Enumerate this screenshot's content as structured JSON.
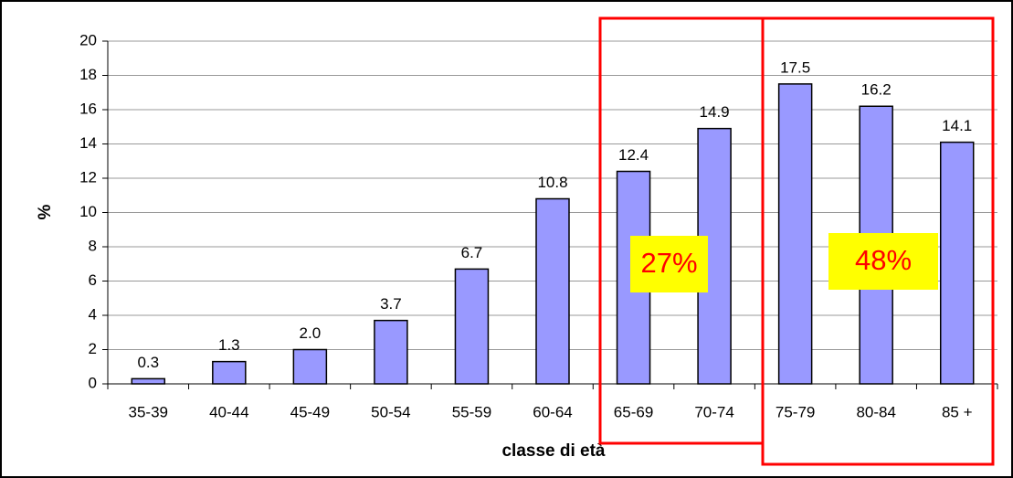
{
  "chart_data": {
    "type": "bar",
    "x_label": "classe di età",
    "y_label": "%",
    "categories": [
      "35-39",
      "40-44",
      "45-49",
      "50-54",
      "55-59",
      "60-64",
      "65-69",
      "70-74",
      "75-79",
      "80-84",
      "85 +"
    ],
    "values": [
      0.3,
      1.3,
      2.0,
      3.7,
      6.7,
      10.8,
      12.4,
      14.9,
      17.5,
      16.2,
      14.1
    ],
    "value_labels": [
      "0.3",
      "1.3",
      "2.0",
      "3.7",
      "6.7",
      "10.8",
      "12.4",
      "14.9",
      "17.5",
      "16.2",
      "14.1"
    ],
    "color": "#9999ff",
    "ylim": [
      0,
      20
    ],
    "yticks": [
      0,
      2,
      4,
      6,
      8,
      10,
      12,
      14,
      16,
      18,
      20
    ],
    "grid": true,
    "annotations": [
      "27%",
      "48%"
    ]
  }
}
